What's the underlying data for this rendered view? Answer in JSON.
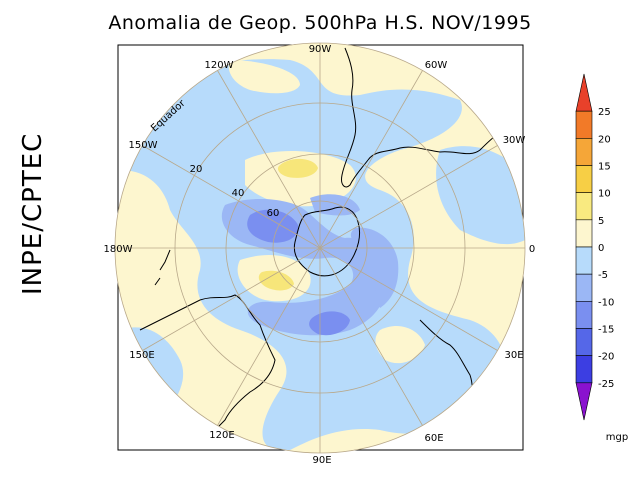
{
  "title": "Anomalia de Geop. 500hPa H.S. NOV/1995",
  "side_label": "INPE/CPTEC",
  "units": "mgp",
  "equator_label": "Equador",
  "longitude_labels": [
    "90W",
    "60W",
    "30W",
    "0",
    "30E",
    "60E",
    "90E",
    "120E",
    "150E",
    "180W",
    "150W",
    "120W"
  ],
  "latitude_labels": [
    "20",
    "40",
    "60"
  ],
  "colorbar": {
    "tick_labels": [
      "25",
      "20",
      "15",
      "10",
      "5",
      "0",
      "-5",
      "-10",
      "-15",
      "-20",
      "-25"
    ],
    "colors": [
      "#e8412a",
      "#f27a28",
      "#f5a638",
      "#f7cf45",
      "#f9ea80",
      "#fdf6cf",
      "#b7dbfb",
      "#9bb7f5",
      "#7a8ff0",
      "#5567e8",
      "#3c3ee2",
      "#8a12cf"
    ]
  },
  "map_colors": {
    "ocean_neutral": "#fdf6cf",
    "neg_5": "#b7dbfb",
    "neg_10": "#9bb7f5",
    "neg_15": "#7a8ff0",
    "pos_5": "#f7e67a"
  }
}
